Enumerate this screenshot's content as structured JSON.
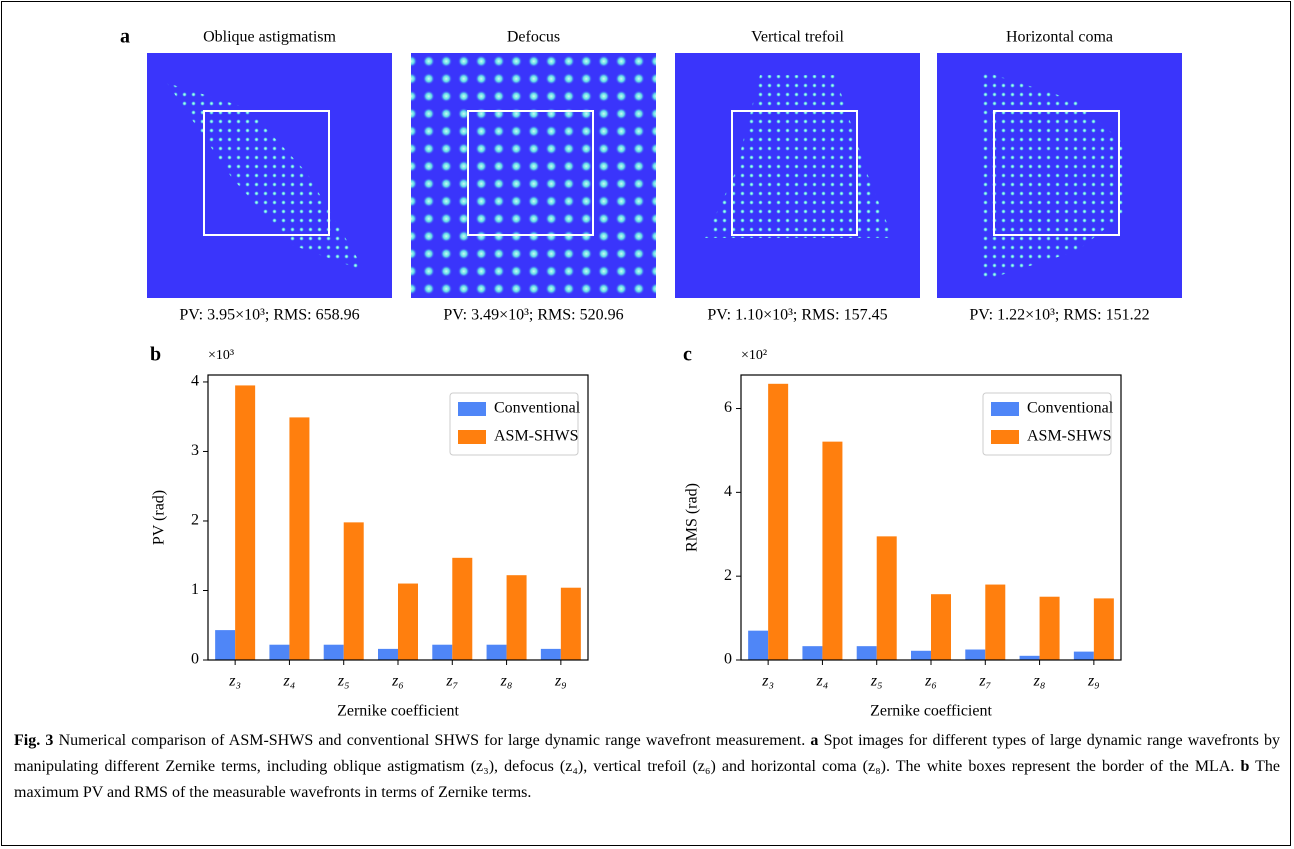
{
  "panel_a": {
    "label": "a",
    "images": [
      {
        "title": "Oblique astigmatism",
        "caption": "PV: 3.95×10³; RMS: 658.96"
      },
      {
        "title": "Defocus",
        "caption": "PV: 3.49×10³; RMS: 520.96"
      },
      {
        "title": "Vertical trefoil",
        "caption": "PV: 1.10×10³; RMS: 157.45"
      },
      {
        "title": "Horizontal coma",
        "caption": "PV: 1.22×10³; RMS: 151.22"
      }
    ]
  },
  "chart_data": [
    {
      "type": "bar",
      "panel_label": "b",
      "y_multiplier": "×10³",
      "ylabel": "PV (rad)",
      "xlabel": "Zernike coefficient",
      "categories": [
        "z₃",
        "z₄",
        "z₅",
        "z₆",
        "z₇",
        "z₈",
        "z₉"
      ],
      "series": [
        {
          "name": "Conventional",
          "color": "#4f86f7",
          "values": [
            0.43,
            0.22,
            0.22,
            0.16,
            0.22,
            0.22,
            0.16
          ]
        },
        {
          "name": "ASM-SHWS",
          "color": "#ff7f0e",
          "values": [
            3.95,
            3.49,
            1.98,
            1.1,
            1.47,
            1.22,
            1.04
          ]
        }
      ],
      "ylim": [
        0,
        4.1
      ],
      "yticks": [
        0,
        1,
        2,
        3,
        4
      ],
      "legend": "upper right"
    },
    {
      "type": "bar",
      "panel_label": "c",
      "y_multiplier": "×10²",
      "ylabel": "RMS (rad)",
      "xlabel": "Zernike coefficient",
      "categories": [
        "z₃",
        "z₄",
        "z₅",
        "z₆",
        "z₇",
        "z₈",
        "z₉"
      ],
      "series": [
        {
          "name": "Conventional",
          "color": "#4f86f7",
          "values": [
            0.7,
            0.33,
            0.33,
            0.22,
            0.25,
            0.1,
            0.2
          ]
        },
        {
          "name": "ASM-SHWS",
          "color": "#ff7f0e",
          "values": [
            6.59,
            5.21,
            2.95,
            1.57,
            1.8,
            1.51,
            1.47
          ]
        }
      ],
      "ylim": [
        0,
        6.8
      ],
      "yticks": [
        0,
        2,
        4,
        6
      ],
      "legend": "upper right"
    }
  ],
  "caption": [
    "Fig. 3",
    "Numerical comparison of ASM-SHWS and conventional SHWS for large dynamic range wavefront measurement.",
    "a",
    "Spot images for different types of large dynamic range wavefronts by manipulating different Zernike terms, including oblique astigmatism (z₃), defocus (z₄), vertical trefoil (z₆) and horizontal coma (z₈). The white boxes represent the border of the MLA.",
    "b",
    "The maximum PV and RMS of the measurable wavefronts in terms of Zernike terms."
  ]
}
